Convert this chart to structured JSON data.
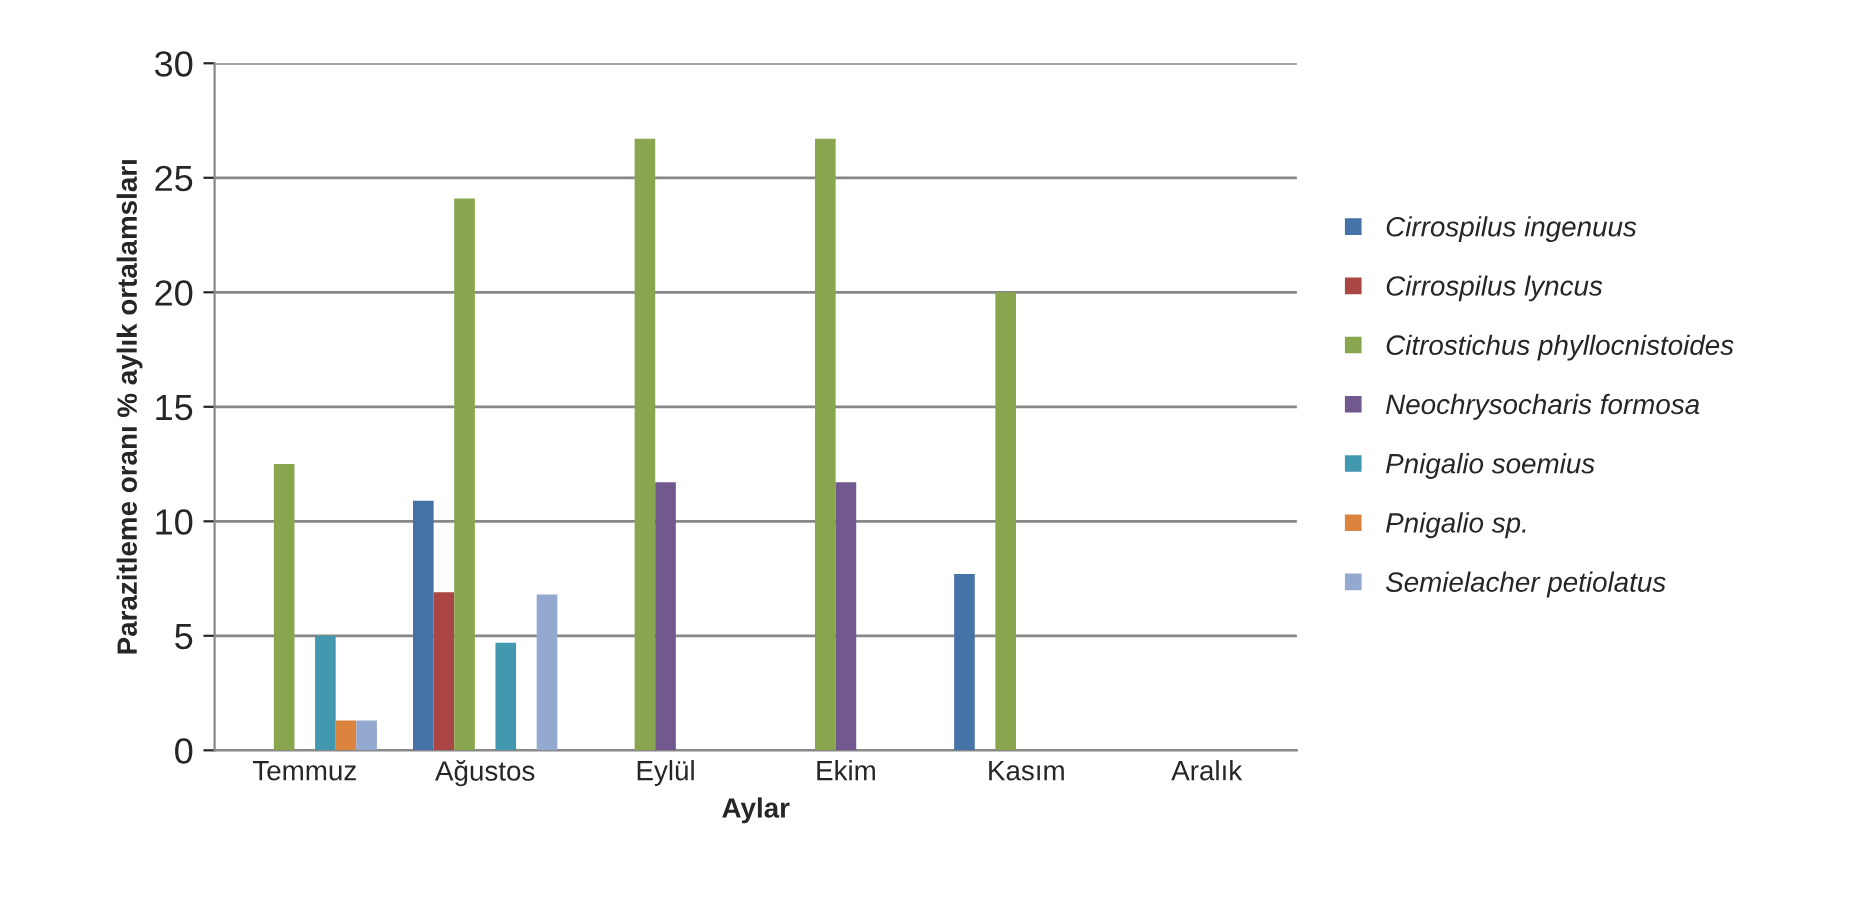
{
  "chart_data": {
    "type": "bar",
    "xlabel": "Aylar",
    "ylabel": "Parazitleme oranı % aylık ortalamsları",
    "categories": [
      "Temmuz",
      "Ağustos",
      "Eylül",
      "Ekim",
      "Kasım",
      "Aralık"
    ],
    "series": [
      {
        "name": "Cirrospilus ingenuus",
        "color": "#4572a7",
        "values": [
          0,
          10.9,
          0,
          0,
          7.7,
          0
        ]
      },
      {
        "name": "Cirrospilus lyncus",
        "color": "#aa4643",
        "values": [
          0,
          6.9,
          0,
          0,
          0,
          0
        ]
      },
      {
        "name": "Citrostichus phyllocnistoides",
        "color": "#89a54e",
        "values": [
          12.5,
          24.1,
          26.7,
          26.7,
          20,
          0
        ]
      },
      {
        "name": "Neochrysocharis formosa",
        "color": "#71588f",
        "values": [
          0,
          0,
          11.7,
          11.7,
          0,
          0
        ]
      },
      {
        "name": "Pnigalio soemius",
        "color": "#4198af",
        "values": [
          5,
          4.7,
          0,
          0,
          0,
          0
        ]
      },
      {
        "name": "Pnigalio sp.",
        "color": "#db843d",
        "values": [
          1.3,
          0,
          0,
          0,
          0,
          0
        ]
      },
      {
        "name": "Semielacher petiolatus",
        "color": "#93a9cf",
        "values": [
          1.3,
          6.8,
          0,
          0,
          0,
          0
        ]
      }
    ],
    "ylim": [
      0,
      30
    ],
    "yticks": [
      0,
      5,
      10,
      15,
      20,
      25,
      30
    ],
    "grid": "y",
    "legend": "right"
  }
}
